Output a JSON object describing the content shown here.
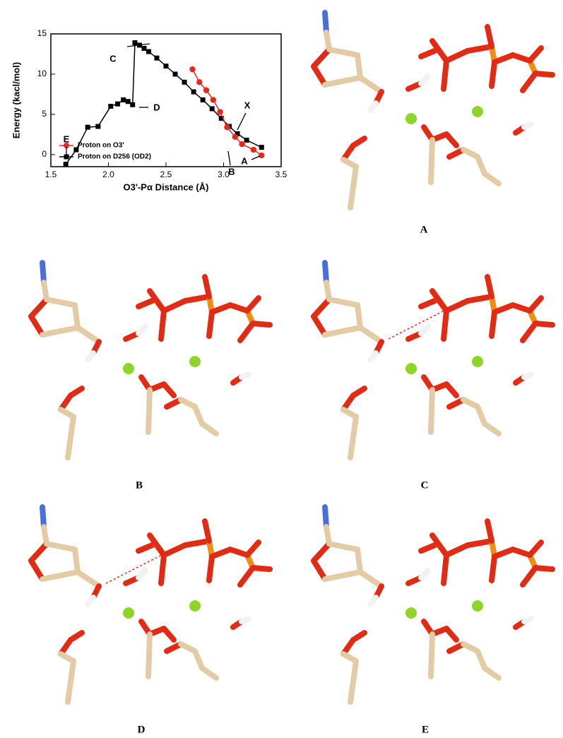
{
  "chart_data": {
    "type": "line",
    "xlabel": "O3'-Pα Distance (Å)",
    "ylabel": "Energy (kacl/mol)",
    "xlim": [
      1.5,
      3.5
    ],
    "xticks": [
      1.5,
      {
        "value": 2,
        "label": "2.0"
      },
      2.5,
      {
        "value": 3,
        "label": "3.0"
      },
      3.5
    ],
    "ylim": [
      -1.5,
      15
    ],
    "yticks": [
      0,
      5,
      10,
      15
    ],
    "series": [
      {
        "name": "Proton on O3'",
        "color": "#e8281e",
        "marker": "circle",
        "x": [
          2.73,
          2.79,
          2.85,
          2.91,
          2.97,
          3.03,
          3.1,
          3.16,
          3.26,
          3.33
        ],
        "values": [
          10.6,
          9.0,
          8.0,
          6.8,
          5.3,
          3.4,
          2.2,
          1.3,
          0.6,
          -0.1
        ]
      },
      {
        "name": "Proton on D256 (OD2)",
        "color": "#000000",
        "marker": "square",
        "x": [
          1.63,
          1.72,
          1.82,
          1.91,
          2.02,
          2.08,
          2.13,
          2.17,
          2.21,
          2.23,
          2.27,
          2.31,
          2.35,
          2.42,
          2.5,
          2.58,
          2.66,
          2.74,
          2.82,
          2.9,
          2.98,
          3.05,
          3.12,
          3.2,
          3.33
        ],
        "values": [
          -1.2,
          0.6,
          3.4,
          3.5,
          6.0,
          6.3,
          6.8,
          6.6,
          6.2,
          13.9,
          13.6,
          13.2,
          12.8,
          12.0,
          11.0,
          10.0,
          9.0,
          7.8,
          6.8,
          5.7,
          4.5,
          3.5,
          2.6,
          1.8,
          0.9
        ]
      }
    ],
    "annotations": [
      "C",
      "D",
      "E",
      "X",
      "B",
      "A"
    ]
  },
  "panels": [
    {
      "label": "A"
    },
    {
      "label": "B"
    },
    {
      "label": "C"
    },
    {
      "label": "D"
    },
    {
      "label": "E"
    }
  ]
}
